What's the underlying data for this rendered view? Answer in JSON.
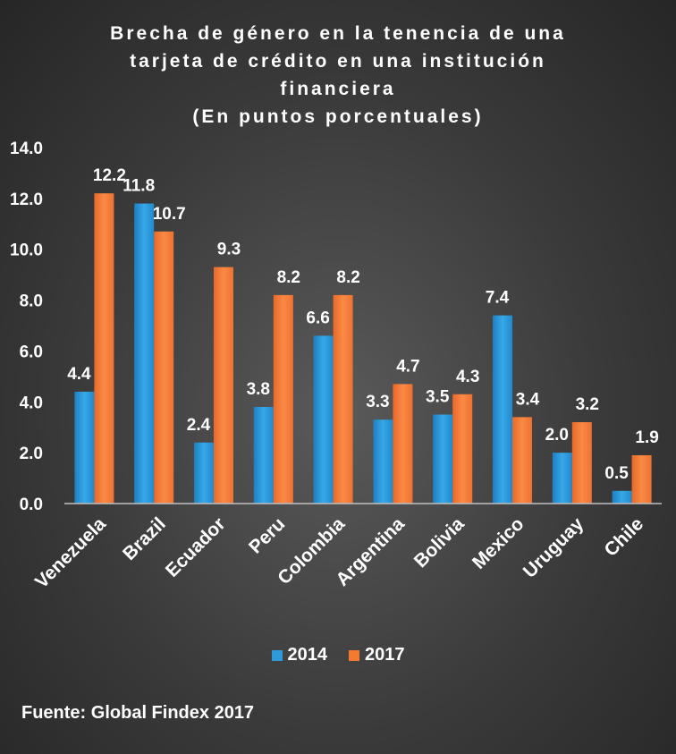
{
  "chart_data": {
    "type": "bar",
    "title_lines": [
      "Brecha de género en la tenencia de una",
      "tarjeta de crédito en una institución",
      "financiera",
      "(En puntos porcentuales)"
    ],
    "categories": [
      "Venezuela",
      "Brazil",
      "Ecuador",
      "Peru",
      "Colombia",
      "Argentina",
      "Bolivia",
      "Mexico",
      "Uruguay",
      "Chile"
    ],
    "series": [
      {
        "name": "2014",
        "color": "#2e9ad8",
        "values": [
          4.4,
          11.8,
          2.4,
          3.8,
          6.6,
          3.3,
          3.5,
          7.4,
          2.0,
          0.5
        ],
        "labels": [
          "4.4",
          "11.8",
          "2.4",
          "3.8",
          "6.6",
          "3.3",
          "3.5",
          "7.4",
          "2.0",
          "0.5"
        ]
      },
      {
        "name": "2017",
        "color": "#f47a32",
        "values": [
          12.2,
          10.7,
          9.3,
          8.2,
          8.2,
          4.7,
          4.3,
          3.4,
          3.2,
          1.9
        ],
        "labels": [
          "12.2",
          "10.7",
          "9.3",
          "8.2",
          "8.2",
          "4.7",
          "4.3",
          "3.4",
          "3.2",
          "1.9"
        ]
      }
    ],
    "yticks": [
      "0.0",
      "2.0",
      "4.0",
      "6.0",
      "8.0",
      "10.0",
      "12.0",
      "14.0"
    ],
    "ylim": [
      0,
      14
    ],
    "legend_position": "bottom",
    "grid": false
  },
  "source": "Fuente: Global Findex 2017"
}
